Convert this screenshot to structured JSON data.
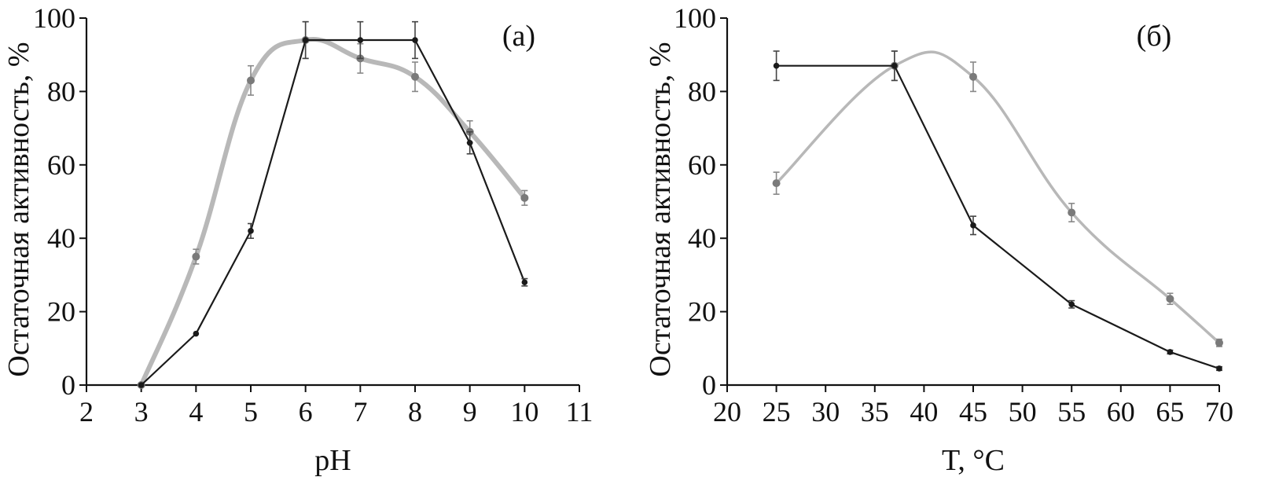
{
  "chart_data": [
    {
      "type": "line",
      "panel_label": "(а)",
      "xlabel": "pH",
      "ylabel": "Остаточная активность, %",
      "xlim": [
        2,
        11
      ],
      "ylim": [
        0,
        100
      ],
      "xticks": [
        "2",
        "3",
        "4",
        "5",
        "6",
        "7",
        "8",
        "9",
        "10",
        "11"
      ],
      "yticks": [
        "0",
        "20",
        "40",
        "60",
        "80",
        "100"
      ],
      "grid": false,
      "legend": "none",
      "series": [
        {
          "color": "#b8b8b8",
          "style": "smooth-thick",
          "x": [
            3,
            4,
            5,
            6,
            7,
            8,
            9,
            10
          ],
          "y": [
            0,
            35,
            83,
            94,
            89,
            84,
            69,
            51
          ],
          "err": [
            0,
            2,
            4,
            5,
            4,
            4,
            3,
            2
          ]
        },
        {
          "color": "#1a1a1a",
          "style": "straight-thin",
          "x": [
            3,
            4,
            5,
            6,
            7,
            8,
            9,
            10
          ],
          "y": [
            0,
            14,
            42,
            94,
            94,
            94,
            66,
            28
          ],
          "err": [
            0,
            0,
            2,
            5,
            5,
            5,
            3,
            1
          ]
        }
      ]
    },
    {
      "type": "line",
      "panel_label": "(б)",
      "xlabel": "T, °C",
      "ylabel": "Остаточная активность, %",
      "xlim": [
        20,
        70
      ],
      "ylim": [
        0,
        100
      ],
      "xticks": [
        "20",
        "25",
        "30",
        "35",
        "40",
        "45",
        "50",
        "55",
        "60",
        "65",
        "70"
      ],
      "yticks": [
        "0",
        "20",
        "40",
        "60",
        "80",
        "100"
      ],
      "grid": false,
      "legend": "none",
      "series": [
        {
          "color": "#b8b8b8",
          "style": "smooth-thin",
          "x": [
            25,
            37,
            45,
            55,
            65,
            70
          ],
          "y": [
            55,
            87,
            84,
            47,
            23.5,
            11.5
          ],
          "err": [
            3,
            4,
            4,
            2.5,
            1.5,
            1
          ]
        },
        {
          "color": "#1a1a1a",
          "style": "straight-thin",
          "x": [
            25,
            37,
            45,
            55,
            65,
            70
          ],
          "y": [
            87,
            87,
            43.5,
            22,
            9,
            4.5
          ],
          "err": [
            4,
            4,
            2.5,
            1,
            0.5,
            0.5
          ]
        }
      ]
    }
  ]
}
